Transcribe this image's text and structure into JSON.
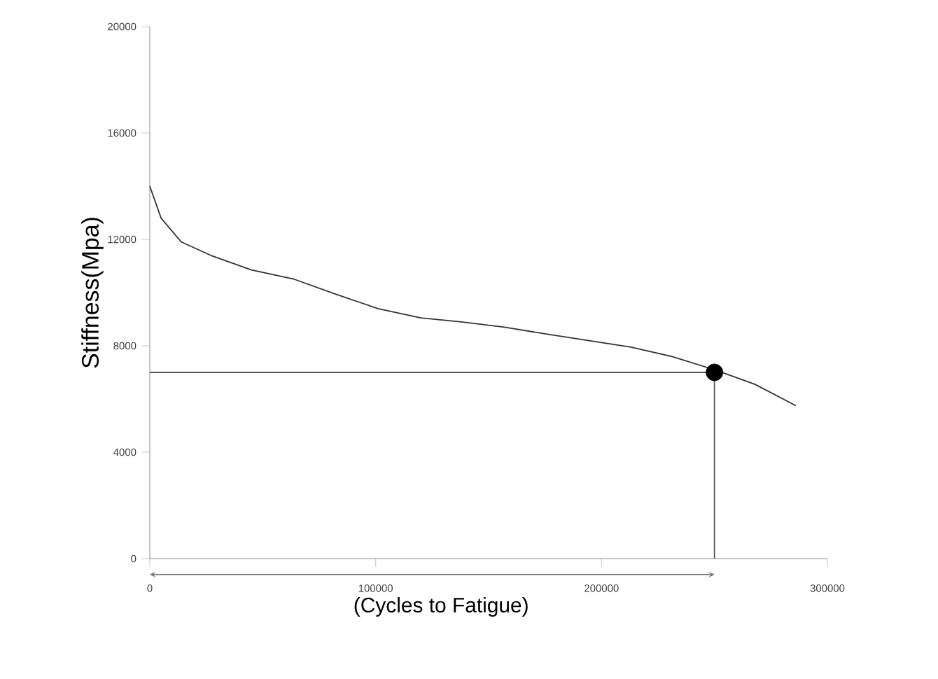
{
  "chart_data": {
    "type": "line",
    "xlabel": "(Cycles to Fatigue)",
    "ylabel": "Stiffness(Mpa)",
    "xlim": [
      0,
      300000
    ],
    "ylim": [
      0,
      20000
    ],
    "xticks": [
      0,
      100000,
      200000,
      300000
    ],
    "yticks": [
      0,
      4000,
      8000,
      12000,
      16000,
      20000
    ],
    "grid": false,
    "series": [
      {
        "color": "#333333",
        "x": [
          0,
          5000,
          14000,
          27000,
          45000,
          64000,
          82000,
          101000,
          120000,
          138000,
          157000,
          175000,
          194000,
          213000,
          231000,
          250000,
          268000,
          286000
        ],
        "values": [
          14000,
          12800,
          11900,
          11400,
          10850,
          10500,
          9950,
          9400,
          9050,
          8900,
          8700,
          8450,
          8200,
          7950,
          7600,
          7100,
          6550,
          5750
        ]
      },
      {
        "type": "line",
        "color": "#555555",
        "x": [
          0,
          250000,
          250000
        ],
        "values": [
          7000,
          7000,
          0
        ]
      },
      {
        "type": "scatter",
        "marker": "circle",
        "color": "#000000",
        "x": [
          250000
        ],
        "values": [
          7000
        ]
      }
    ]
  }
}
